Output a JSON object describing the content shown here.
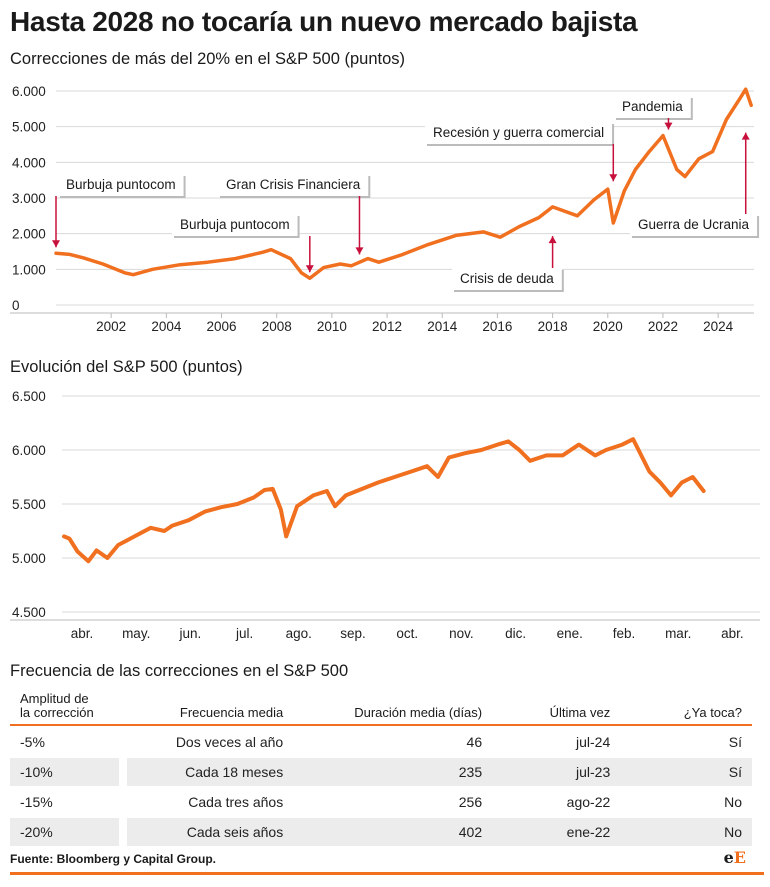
{
  "title": "Hasta 2028 no tocaría un nuevo mercado bajista",
  "colors": {
    "line": "#f07020",
    "arrow": "#c8103c",
    "grid": "#d9d9d9"
  },
  "chart_data": [
    {
      "type": "line",
      "title": "Correcciones de más del 20% en el S&P 500 (puntos)",
      "x_ticks": [
        "2002",
        "2004",
        "2006",
        "2008",
        "2010",
        "2012",
        "2014",
        "2016",
        "2018",
        "2020",
        "2022",
        "2024"
      ],
      "y_ticks": [
        "0",
        "1.000",
        "2.000",
        "3.000",
        "4.000",
        "5.000",
        "6.000"
      ],
      "ylim": [
        0,
        6000
      ],
      "xlim": [
        2000.0,
        2025.3
      ],
      "grid": "horizontal",
      "series": [
        {
          "x": [
            2000.0,
            2000.5,
            2001.0,
            2001.7,
            2002.5,
            2002.8,
            2003.5,
            2004.5,
            2005.5,
            2006.5,
            2007.5,
            2007.8,
            2008.5,
            2008.9,
            2009.2,
            2009.7,
            2010.3,
            2010.7,
            2011.3,
            2011.7,
            2012.5,
            2013.5,
            2014.5,
            2015.5,
            2016.1,
            2016.8,
            2017.5,
            2018.0,
            2018.9,
            2019.5,
            2020.0,
            2020.2,
            2020.6,
            2021.0,
            2021.5,
            2022.0,
            2022.5,
            2022.8,
            2023.3,
            2023.8,
            2024.3,
            2024.8,
            2025.0,
            2025.2
          ],
          "y": [
            1450,
            1420,
            1320,
            1150,
            900,
            850,
            1000,
            1130,
            1200,
            1300,
            1480,
            1550,
            1300,
            900,
            750,
            1050,
            1150,
            1100,
            1300,
            1200,
            1400,
            1700,
            1950,
            2050,
            1900,
            2200,
            2450,
            2750,
            2500,
            2950,
            3250,
            2300,
            3200,
            3800,
            4300,
            4750,
            3800,
            3600,
            4100,
            4300,
            5200,
            5800,
            6050,
            5600
          ]
        }
      ],
      "annotations": [
        {
          "label": "Burbuja puntocom",
          "x": 2000.0,
          "y": 1450
        },
        {
          "label": "Burbuja puntocom",
          "x": 2009.2,
          "y": 750
        },
        {
          "label": "Gran Crisis Financiera",
          "x": 2011.0,
          "y": 1250
        },
        {
          "label": "Crisis de deuda",
          "x": 2018.0,
          "y": 2100
        },
        {
          "label": "Recesión y guerra comercial",
          "x": 2020.2,
          "y": 3300
        },
        {
          "label": "Pandemia",
          "x": 2022.2,
          "y": 4750
        },
        {
          "label": "Guerra de Ucrania",
          "x": 2025.0,
          "y": 5000
        }
      ]
    },
    {
      "type": "line",
      "title": "Evolución del S&P 500 (puntos)",
      "x_ticks": [
        "abr.",
        "may.",
        "jun.",
        "jul.",
        "ago.",
        "sep.",
        "oct.",
        "nov.",
        "dic.",
        "ene.",
        "feb.",
        "mar.",
        "abr."
      ],
      "y_ticks": [
        "4.500",
        "5.000",
        "5.500",
        "6.000",
        "6.500"
      ],
      "ylim": [
        4500,
        6500
      ],
      "grid": "horizontal",
      "series": [
        {
          "x": [
            0.0,
            0.1,
            0.25,
            0.45,
            0.6,
            0.8,
            1.0,
            1.3,
            1.6,
            1.85,
            2.0,
            2.3,
            2.6,
            2.9,
            3.2,
            3.5,
            3.7,
            3.85,
            4.0,
            4.1,
            4.3,
            4.6,
            4.85,
            5.0,
            5.2,
            5.5,
            5.8,
            6.1,
            6.4,
            6.7,
            6.9,
            7.1,
            7.4,
            7.7,
            8.0,
            8.2,
            8.4,
            8.6,
            8.9,
            9.2,
            9.5,
            9.8,
            10.0,
            10.3,
            10.5,
            10.8,
            11.0,
            11.2,
            11.4,
            11.6,
            11.8
          ],
          "y": [
            5200,
            5180,
            5060,
            4970,
            5070,
            5000,
            5120,
            5200,
            5280,
            5250,
            5300,
            5350,
            5430,
            5470,
            5500,
            5560,
            5630,
            5640,
            5450,
            5200,
            5480,
            5580,
            5620,
            5480,
            5580,
            5640,
            5700,
            5750,
            5800,
            5850,
            5750,
            5930,
            5970,
            6000,
            6050,
            6080,
            6000,
            5900,
            5950,
            5950,
            6050,
            5950,
            6000,
            6050,
            6100,
            5800,
            5700,
            5580,
            5700,
            5750,
            5620
          ]
        }
      ]
    }
  ],
  "table": {
    "title": "Frecuencia de las correcciones en el S&P 500",
    "headers": [
      "Amplitud de\nla corrección",
      "Frecuencia media",
      "Duración media (días)",
      "Última vez",
      "¿Ya toca?"
    ],
    "rows": [
      [
        "-5%",
        "Dos veces al año",
        "46",
        "jul-24",
        "Sí"
      ],
      [
        "-10%",
        "Cada 18 meses",
        "235",
        "jul-23",
        "Sí"
      ],
      [
        "-15%",
        "Cada tres años",
        "256",
        "ago-22",
        "No"
      ],
      [
        "-20%",
        "Cada seis años",
        "402",
        "ene-22",
        "No"
      ]
    ]
  },
  "source": "Fuente: Bloomberg y Capital Group.",
  "logo": {
    "part1": "e",
    "part2": "E"
  }
}
